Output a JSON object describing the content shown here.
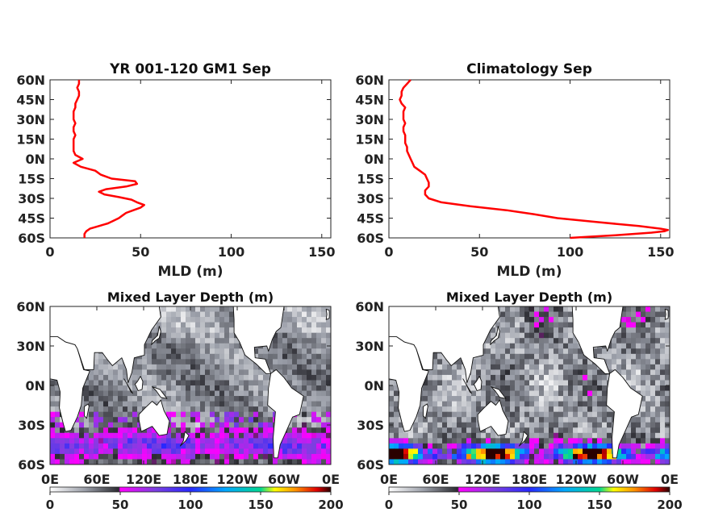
{
  "chart_data": [
    {
      "type": "line",
      "title": "YR 001-120 GM1 Sep",
      "xlabel": "MLD (m)",
      "ylabel": "",
      "xlim": [
        0,
        155
      ],
      "ylim": [
        -60,
        60
      ],
      "xticks": [
        "0",
        "50",
        "100",
        "150"
      ],
      "yticks": [
        "60N",
        "45N",
        "30N",
        "15N",
        "0N",
        "15S",
        "30S",
        "45S",
        "60S"
      ],
      "color": "#ff0000",
      "series": [
        {
          "lat": [
            60,
            57,
            54,
            51,
            48,
            45,
            42,
            39,
            36,
            33,
            30,
            27,
            24,
            21,
            18,
            15,
            12,
            9,
            6,
            3,
            0,
            -3,
            -6,
            -9,
            -12,
            -15,
            -17,
            -19,
            -21,
            -23,
            -25,
            -27,
            -29,
            -31,
            -33,
            -35,
            -37,
            -39,
            -41,
            -43,
            -45,
            -47,
            -49,
            -51,
            -53,
            -55,
            -57,
            -59,
            -60
          ],
          "mld": [
            16,
            16,
            15,
            16,
            16,
            15,
            14,
            14,
            13,
            13,
            13,
            14,
            13,
            13,
            14,
            13,
            13,
            13,
            13,
            14,
            18,
            13,
            17,
            25,
            28,
            34,
            47,
            48,
            42,
            31,
            27,
            30,
            38,
            45,
            48,
            52,
            50,
            46,
            42,
            40,
            38,
            35,
            32,
            27,
            22,
            20,
            19,
            19,
            19
          ]
        }
      ]
    },
    {
      "type": "line",
      "title": "Climatology Sep",
      "xlabel": "MLD (m)",
      "ylabel": "",
      "xlim": [
        0,
        155
      ],
      "ylim": [
        -60,
        60
      ],
      "xticks": [
        "0",
        "50",
        "100",
        "150"
      ],
      "yticks": [
        "60N",
        "45N",
        "30N",
        "15N",
        "0N",
        "15S",
        "30S",
        "45S",
        "60S"
      ],
      "color": "#ff0000",
      "series": [
        {
          "lat": [
            60,
            57,
            54,
            51,
            48,
            45,
            42,
            39,
            36,
            33,
            30,
            27,
            24,
            21,
            18,
            15,
            12,
            9,
            6,
            3,
            0,
            -3,
            -6,
            -9,
            -12,
            -15,
            -18,
            -21,
            -24,
            -27,
            -30,
            -33,
            -36,
            -39,
            -42,
            -45,
            -48,
            -51,
            -53,
            -54,
            -55,
            -56,
            -57,
            -58,
            -59,
            -60
          ],
          "mld": [
            12,
            10,
            8,
            7,
            7,
            6,
            7,
            9,
            8,
            8,
            8,
            9,
            8,
            8,
            9,
            9,
            9,
            10,
            10,
            11,
            12,
            13,
            14,
            17,
            20,
            21,
            22,
            22,
            20,
            20,
            22,
            29,
            45,
            65,
            80,
            93,
            115,
            138,
            150,
            154,
            152,
            145,
            135,
            125,
            112,
            100
          ]
        }
      ]
    },
    {
      "type": "heatmap",
      "title": "Mixed Layer Depth (m)",
      "variant": "model",
      "xticks": [
        "0E",
        "60E",
        "120E",
        "180E",
        "120W",
        "60W",
        "0E"
      ],
      "yticks": [
        "60N",
        "30N",
        "0N",
        "30S",
        "60S"
      ],
      "ylim": [
        -60,
        60
      ],
      "colorbar_ticks": [
        "0",
        "50",
        "100",
        "150",
        "200"
      ],
      "colorbar_range": [
        0,
        200
      ],
      "colorbar_colors": [
        "#ffffff",
        "#9a9ea8",
        "#2a2a30",
        "#ff00ff",
        "#7b3fe0",
        "#2828ff",
        "#00a8ff",
        "#00d890",
        "#ffff00",
        "#ff9000",
        "#e00000",
        "#2a0000"
      ]
    },
    {
      "type": "heatmap",
      "title": "Mixed Layer Depth (m)",
      "variant": "climatology",
      "xticks": [
        "0E",
        "60E",
        "120E",
        "180E",
        "120W",
        "60W",
        "0E"
      ],
      "yticks": [
        "60N",
        "30N",
        "0N",
        "30S",
        "60S"
      ],
      "ylim": [
        -60,
        60
      ],
      "colorbar_ticks": [
        "0",
        "50",
        "100",
        "150",
        "200"
      ],
      "colorbar_range": [
        0,
        200
      ],
      "colorbar_colors": [
        "#ffffff",
        "#9a9ea8",
        "#2a2a30",
        "#ff00ff",
        "#7b3fe0",
        "#2828ff",
        "#00a8ff",
        "#00d890",
        "#ffff00",
        "#ff9000",
        "#e00000",
        "#2a0000"
      ]
    }
  ]
}
